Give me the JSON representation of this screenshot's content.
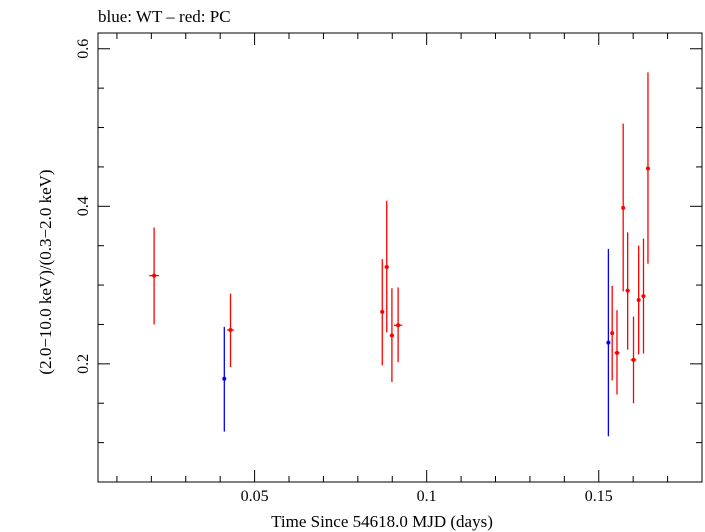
{
  "chart_data": {
    "type": "scatter",
    "title": "blue: WT – red: PC",
    "xlabel": "Time Since 54618.0 MJD (days)",
    "ylabel": "(2.0−10.0 keV)/(0.3−2.0 keV)",
    "xlim": [
      0.0045,
      0.18
    ],
    "ylim": [
      0.05,
      0.62
    ],
    "x_ticks": [
      {
        "value": 0.05,
        "label": "0.05"
      },
      {
        "value": 0.1,
        "label": "0.1"
      },
      {
        "value": 0.15,
        "label": "0.15"
      }
    ],
    "y_ticks": [
      {
        "value": 0.2,
        "label": "0.2"
      },
      {
        "value": 0.4,
        "label": "0.4"
      },
      {
        "value": 0.6,
        "label": "0.6"
      }
    ],
    "grid": false,
    "series": [
      {
        "mode": "WT",
        "color": "#0000ff",
        "points": [
          {
            "x": 0.0412,
            "y": 0.181,
            "ylo": 0.114,
            "yhi": 0.247,
            "xerr": 0.0
          },
          {
            "x": 0.1528,
            "y": 0.227,
            "ylo": 0.108,
            "yhi": 0.346,
            "xerr": 0.0
          }
        ]
      },
      {
        "mode": "PC",
        "color": "#ff0000",
        "points": [
          {
            "x": 0.0208,
            "y": 0.312,
            "ylo": 0.25,
            "yhi": 0.373,
            "xerr": 0.0014
          },
          {
            "x": 0.043,
            "y": 0.243,
            "ylo": 0.196,
            "yhi": 0.289,
            "xerr": 0.001
          },
          {
            "x": 0.0871,
            "y": 0.266,
            "ylo": 0.198,
            "yhi": 0.333,
            "xerr": 0.0006
          },
          {
            "x": 0.0884,
            "y": 0.323,
            "ylo": 0.24,
            "yhi": 0.407,
            "xerr": 0.0006
          },
          {
            "x": 0.0899,
            "y": 0.236,
            "ylo": 0.177,
            "yhi": 0.296,
            "xerr": 0.0006
          },
          {
            "x": 0.0917,
            "y": 0.249,
            "ylo": 0.202,
            "yhi": 0.297,
            "xerr": 0.0012
          },
          {
            "x": 0.1539,
            "y": 0.239,
            "ylo": 0.179,
            "yhi": 0.299,
            "xerr": 0.0005
          },
          {
            "x": 0.1553,
            "y": 0.214,
            "ylo": 0.161,
            "yhi": 0.268,
            "xerr": 0.0007
          },
          {
            "x": 0.1571,
            "y": 0.398,
            "ylo": 0.292,
            "yhi": 0.505,
            "xerr": 0.0005
          },
          {
            "x": 0.1584,
            "y": 0.293,
            "ylo": 0.218,
            "yhi": 0.367,
            "xerr": 0.0006
          },
          {
            "x": 0.1601,
            "y": 0.205,
            "ylo": 0.15,
            "yhi": 0.26,
            "xerr": 0.0008
          },
          {
            "x": 0.1616,
            "y": 0.281,
            "ylo": 0.212,
            "yhi": 0.35,
            "xerr": 0.0005
          },
          {
            "x": 0.163,
            "y": 0.286,
            "ylo": 0.213,
            "yhi": 0.359,
            "xerr": 0.0006
          },
          {
            "x": 0.1643,
            "y": 0.448,
            "ylo": 0.327,
            "yhi": 0.57,
            "xerr": 0.0005
          }
        ]
      }
    ]
  }
}
